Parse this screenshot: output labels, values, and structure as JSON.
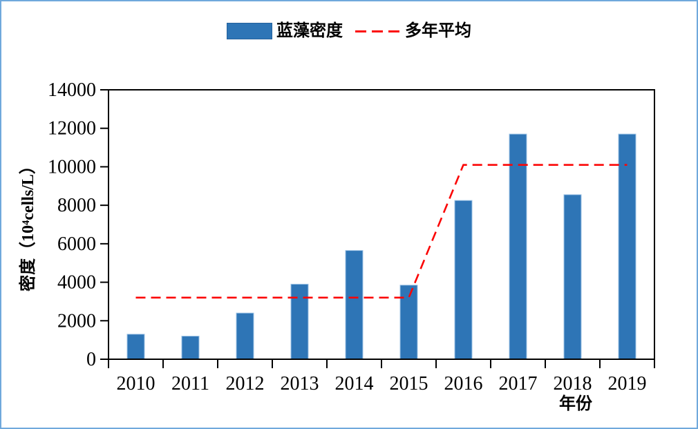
{
  "legend": {
    "bar_label": "蓝藻密度",
    "line_label": "多年平均"
  },
  "axes": {
    "y_title": "密度（10⁴cells/L）",
    "x_title": "年份",
    "y_ticks": [
      0,
      2000,
      4000,
      6000,
      8000,
      10000,
      12000,
      14000
    ]
  },
  "colors": {
    "bar": "#2E75B6",
    "bar_edge": "#9DC3E6",
    "line": "#FB0505",
    "plot_border": "#000000",
    "frame_border": "#6FA8DC",
    "text": "#000000"
  },
  "chart_data": {
    "type": "bar",
    "categories": [
      "2010",
      "2011",
      "2012",
      "2013",
      "2014",
      "2015",
      "2016",
      "2017",
      "2018",
      "2019"
    ],
    "series": [
      {
        "name": "蓝藻密度",
        "type": "bar",
        "values": [
          1300,
          1200,
          2400,
          3900,
          5650,
          3850,
          8250,
          11700,
          8550,
          11700
        ]
      },
      {
        "name": "多年平均",
        "type": "line",
        "style": "dashed",
        "values": [
          3200,
          3200,
          3200,
          3200,
          3200,
          3200,
          10100,
          10100,
          10100,
          10100
        ]
      }
    ],
    "title": "",
    "xlabel": "年份",
    "ylabel": "密度（10⁴cells/L）",
    "ylim": [
      0,
      14000
    ],
    "y_tick_step": 2000,
    "grid": false,
    "legend_position": "top-center"
  }
}
